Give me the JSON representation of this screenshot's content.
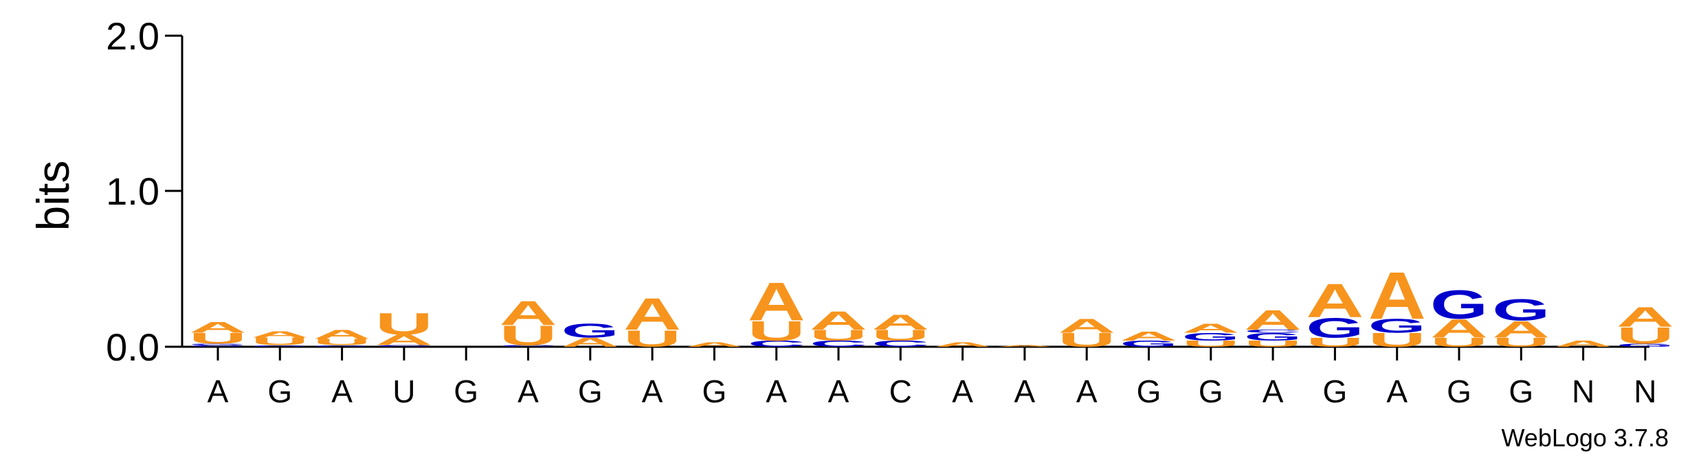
{
  "chart_data": {
    "type": "sequence-logo",
    "ylabel": "bits",
    "ylim": [
      0,
      2.0
    ],
    "y_ticks": [
      "0.0",
      "1.0",
      "2.0"
    ],
    "y_tick_values": [
      0,
      1,
      2
    ],
    "x_labels": [
      "A",
      "G",
      "A",
      "U",
      "G",
      "A",
      "G",
      "A",
      "G",
      "A",
      "A",
      "C",
      "A",
      "A",
      "A",
      "G",
      "G",
      "A",
      "G",
      "A",
      "G",
      "G",
      "N",
      "N"
    ],
    "credit": "WebLogo 3.7.8",
    "colors": {
      "A": "#f7941d",
      "U": "#f7941d",
      "G": "#0000cc",
      "C": "#0000cc"
    },
    "positions": [
      {
        "stack": [
          [
            "C",
            0.01
          ],
          [
            "G",
            0.01
          ],
          [
            "U",
            0.07
          ],
          [
            "A",
            0.07
          ]
        ]
      },
      {
        "stack": [
          [
            "G",
            0.01
          ],
          [
            "U",
            0.05
          ],
          [
            "A",
            0.04
          ]
        ]
      },
      {
        "stack": [
          [
            "G",
            0.01
          ],
          [
            "U",
            0.04
          ],
          [
            "A",
            0.06
          ]
        ]
      },
      {
        "stack": [
          [
            "C",
            0.01
          ],
          [
            "A",
            0.07
          ],
          [
            "U",
            0.14
          ]
        ]
      },
      {
        "stack": []
      },
      {
        "stack": [
          [
            "C",
            0.01
          ],
          [
            "U",
            0.13
          ],
          [
            "A",
            0.16
          ]
        ]
      },
      {
        "stack": [
          [
            "A",
            0.06
          ],
          [
            "G",
            0.09
          ]
        ]
      },
      {
        "stack": [
          [
            "U",
            0.11
          ],
          [
            "A",
            0.21
          ]
        ]
      },
      {
        "stack": [
          [
            "A",
            0.03
          ]
        ]
      },
      {
        "stack": [
          [
            "C",
            0.04
          ],
          [
            "U",
            0.13
          ],
          [
            "A",
            0.25
          ]
        ]
      },
      {
        "stack": [
          [
            "C",
            0.04
          ],
          [
            "U",
            0.07
          ],
          [
            "A",
            0.12
          ]
        ]
      },
      {
        "stack": [
          [
            "C",
            0.04
          ],
          [
            "U",
            0.07
          ],
          [
            "A",
            0.1
          ]
        ]
      },
      {
        "stack": [
          [
            "A",
            0.03
          ]
        ]
      },
      {
        "stack": [
          [
            "A",
            0.01
          ]
        ]
      },
      {
        "stack": [
          [
            "U",
            0.09
          ],
          [
            "A",
            0.09
          ]
        ]
      },
      {
        "stack": [
          [
            "G",
            0.04
          ],
          [
            "A",
            0.06
          ]
        ]
      },
      {
        "stack": [
          [
            "U",
            0.04
          ],
          [
            "G",
            0.05
          ],
          [
            "A",
            0.06
          ]
        ]
      },
      {
        "stack": [
          [
            "U",
            0.04
          ],
          [
            "G",
            0.05
          ],
          [
            "C",
            0.02
          ],
          [
            "A",
            0.13
          ]
        ]
      },
      {
        "stack": [
          [
            "U",
            0.06
          ],
          [
            "G",
            0.13
          ],
          [
            "A",
            0.22
          ]
        ]
      },
      {
        "stack": [
          [
            "U",
            0.09
          ],
          [
            "G",
            0.09
          ],
          [
            "A",
            0.31
          ]
        ]
      },
      {
        "stack": [
          [
            "U",
            0.06
          ],
          [
            "A",
            0.12
          ],
          [
            "G",
            0.19
          ]
        ]
      },
      {
        "stack": [
          [
            "U",
            0.06
          ],
          [
            "A",
            0.11
          ],
          [
            "G",
            0.14
          ]
        ]
      },
      {
        "stack": [
          [
            "A",
            0.04
          ]
        ]
      },
      {
        "stack": [
          [
            "G",
            0.02
          ],
          [
            "U",
            0.11
          ],
          [
            "A",
            0.13
          ]
        ]
      }
    ]
  }
}
